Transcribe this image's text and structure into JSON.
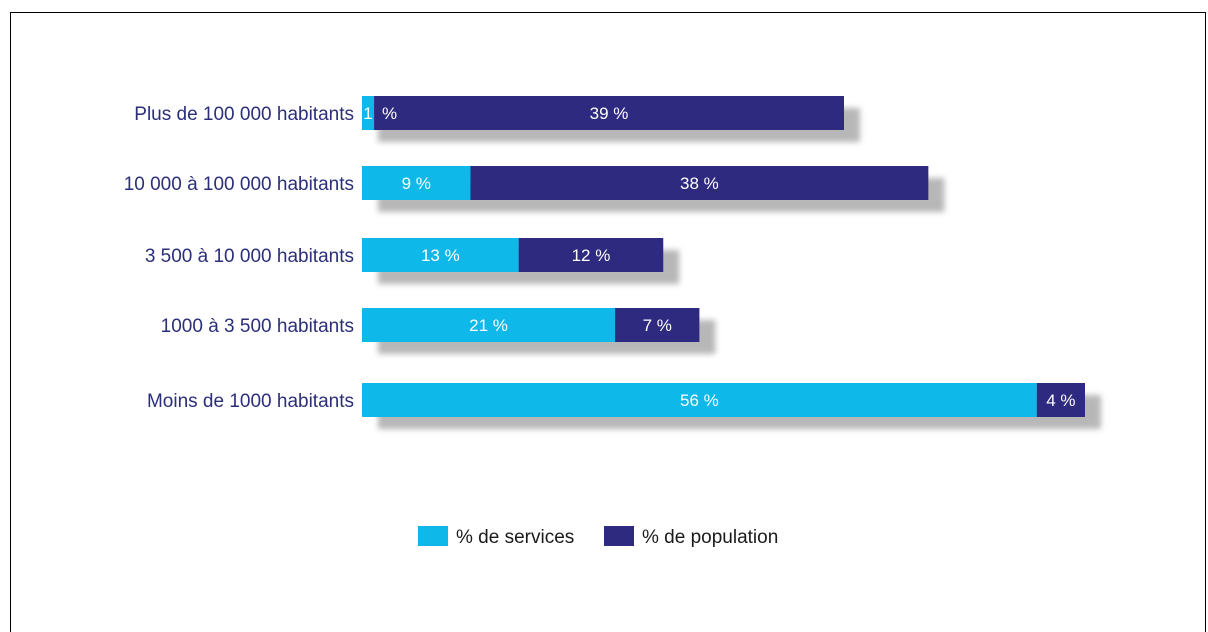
{
  "chart_data": {
    "type": "bar",
    "orientation": "horizontal",
    "stacked": true,
    "categories": [
      "Plus de 100 000 habitants",
      "10 000 à 100 000 habitants",
      "3 500 à 10 000 habitants",
      "1000 à 3 500 habitants",
      "Moins de 1000 habitants"
    ],
    "series": [
      {
        "name": "% de services",
        "color": "#0eb8e8",
        "values": [
          1,
          9,
          13,
          21,
          56
        ],
        "labels": [
          "1",
          "9 %",
          "13 %",
          "21 %",
          "56 %"
        ]
      },
      {
        "name": "% de population",
        "color": "#2e2a80",
        "values": [
          39,
          38,
          12,
          7,
          4
        ],
        "labels": [
          "39 %",
          "38 %",
          "12 %",
          "7 %",
          "4 %"
        ]
      }
    ],
    "first_bar_extra_label": "%",
    "legend_position": "bottom",
    "grid": false
  }
}
